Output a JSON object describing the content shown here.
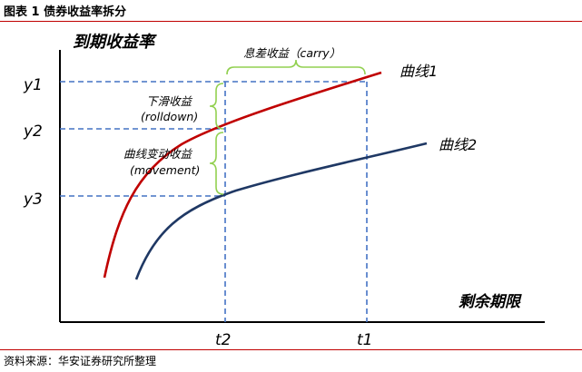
{
  "figure": {
    "title": "图表 1 债券收益率拆分",
    "source": "资料来源：华安证券研究所整理"
  },
  "axes": {
    "y_title": "到期收益率",
    "x_title": "剩余期限",
    "y_ticks": [
      "y1",
      "y2",
      "y3"
    ],
    "x_ticks": [
      "t2",
      "t1"
    ]
  },
  "curves": {
    "curve1_label": "曲线1",
    "curve2_label": "曲线2",
    "curve1_color": "#c00000",
    "curve2_color": "#1f3864"
  },
  "annotations": {
    "carry_line1": "息差收益（carry）",
    "rolldown_line1": "下滑收益",
    "rolldown_line2": "(rolldown)",
    "movement_line1": "曲线变动收益",
    "movement_line2": "(movement)"
  },
  "colors": {
    "guide_line": "#4472c4",
    "brace": "#92d050"
  }
}
